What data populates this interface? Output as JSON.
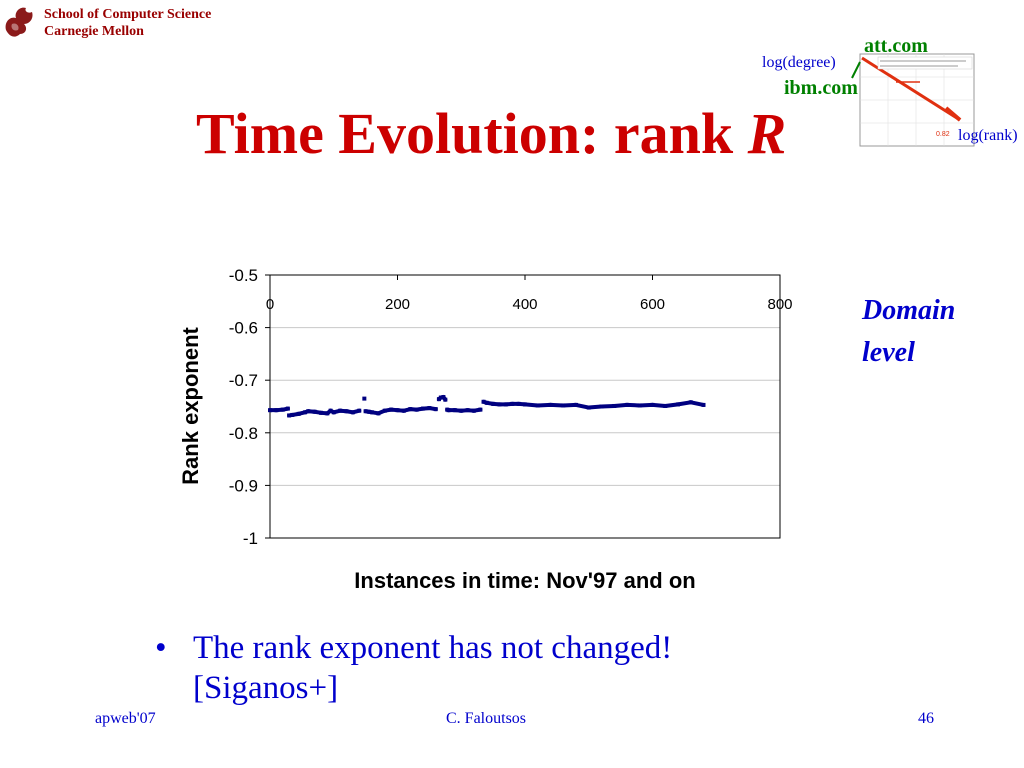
{
  "header": {
    "school_line1": "School of Computer Science",
    "school_line2": "Carnegie Mellon"
  },
  "slide": {
    "title_main": "Time Evolution: rank ",
    "title_italic": "R",
    "side_note_line1": "Domain",
    "side_note_line2": "level",
    "bullet_line1": "The rank exponent has not changed!",
    "bullet_line2": "[Siganos+]",
    "bullet_marker": "•"
  },
  "inset": {
    "label_att": "att.com",
    "label_ibm": "ibm.com",
    "label_logdegree": "log(degree)",
    "label_logrank": "log(rank)",
    "value_label": "0.82"
  },
  "footer": {
    "left": "apweb'07",
    "center": "C. Faloutsos",
    "right": "46"
  },
  "chart_data": {
    "type": "scatter",
    "xlabel": "Instances in time: Nov'97 and on",
    "ylabel": "Rank exponent",
    "xlim": [
      0,
      800
    ],
    "ylim": [
      -1,
      -0.5
    ],
    "x_ticks": [
      "0",
      "200",
      "400",
      "600",
      "800"
    ],
    "y_ticks": [
      "-0.5",
      "-0.6",
      "-0.7",
      "-0.8",
      "-0.9",
      "-1"
    ],
    "grid": true,
    "color": "#000080",
    "series": [
      {
        "x": [
          0,
          10,
          20,
          28,
          30,
          35,
          45,
          55,
          60,
          70,
          80,
          90,
          95,
          100,
          110,
          120,
          130,
          140,
          148,
          150,
          155,
          160,
          170,
          180,
          190,
          200,
          210,
          220,
          230,
          240,
          250,
          260,
          265,
          268,
          272,
          275,
          278,
          280,
          290,
          300,
          310,
          320,
          330,
          335,
          340,
          350,
          360,
          370,
          380,
          390,
          400,
          420,
          440,
          460,
          480,
          500,
          520,
          540,
          560,
          580,
          600,
          620,
          640,
          660,
          680
        ],
        "y": [
          -0.757,
          -0.757,
          -0.756,
          -0.754,
          -0.767,
          -0.766,
          -0.764,
          -0.761,
          -0.759,
          -0.76,
          -0.762,
          -0.763,
          -0.758,
          -0.761,
          -0.758,
          -0.759,
          -0.761,
          -0.758,
          -0.735,
          -0.759,
          -0.76,
          -0.761,
          -0.763,
          -0.758,
          -0.756,
          -0.757,
          -0.758,
          -0.755,
          -0.756,
          -0.754,
          -0.753,
          -0.755,
          -0.736,
          -0.733,
          -0.732,
          -0.737,
          -0.756,
          -0.757,
          -0.757,
          -0.758,
          -0.757,
          -0.758,
          -0.756,
          -0.741,
          -0.743,
          -0.745,
          -0.746,
          -0.746,
          -0.745,
          -0.745,
          -0.746,
          -0.748,
          -0.747,
          -0.748,
          -0.747,
          -0.752,
          -0.75,
          -0.749,
          -0.747,
          -0.748,
          -0.747,
          -0.749,
          -0.746,
          -0.742,
          -0.747
        ]
      }
    ]
  }
}
